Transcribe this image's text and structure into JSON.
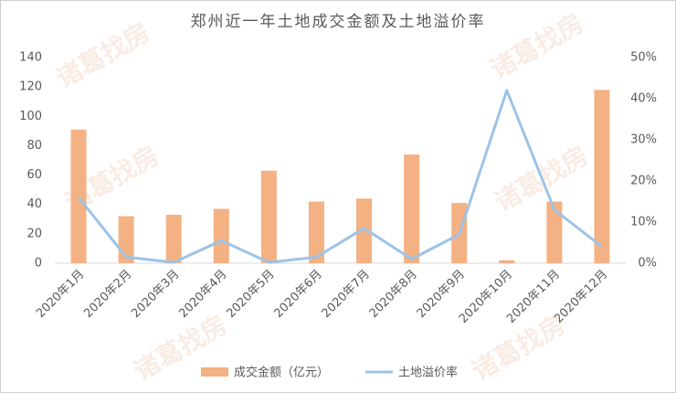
{
  "chart_data": {
    "type": "combo",
    "title": "郑州近一年土地成交金额及土地溢价率",
    "watermark": "诸葛找房",
    "categories": [
      "2020年1月",
      "2020年2月",
      "2020年3月",
      "2020年4月",
      "2020年5月",
      "2020年6月",
      "2020年7月",
      "2020年8月",
      "2020年9月",
      "2020年10月",
      "2020年11月",
      "2020年12月"
    ],
    "series": [
      {
        "name": "成交金额（亿元）",
        "type": "bar",
        "color": "#F4B183",
        "values": [
          91,
          32,
          33,
          37,
          63,
          42,
          44,
          74,
          41,
          2,
          42,
          118
        ]
      },
      {
        "name": "土地溢价率",
        "type": "line",
        "axis": "y2",
        "color": "#9DC3E6",
        "values": [
          16,
          1.5,
          0.2,
          5.5,
          0.2,
          1.5,
          8.5,
          1,
          7,
          42,
          13,
          4
        ]
      }
    ],
    "ylim": [
      0,
      140
    ],
    "yticks": [
      0,
      20,
      40,
      60,
      80,
      100,
      120,
      140
    ],
    "y2lim": [
      0,
      50
    ],
    "y2ticks": [
      {
        "value": 0,
        "label": "0%"
      },
      {
        "value": 10,
        "label": "10%"
      },
      {
        "value": 20,
        "label": "20%"
      },
      {
        "value": 30,
        "label": "30%"
      },
      {
        "value": 40,
        "label": "40%"
      },
      {
        "value": 50,
        "label": "50%"
      }
    ],
    "grid": false,
    "legend": "bottom"
  }
}
